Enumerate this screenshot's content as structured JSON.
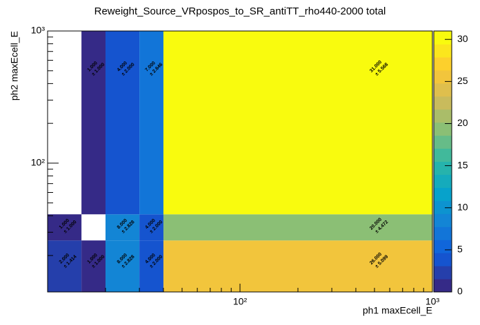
{
  "chart_data": {
    "type": "heatmap",
    "title": "Reweight_Source_VRpospos_to_SR_antiTT_rho440-2000 total",
    "x_label": "ph1 maxEcell_E",
    "y_label": "ph2 maxEcell_E",
    "log_x": true,
    "log_y": true,
    "xlim": [
      10,
      1000
    ],
    "ylim": [
      10.6,
      1000
    ],
    "xticks": [
      {
        "value": 100,
        "label": "10²"
      },
      {
        "value": 1000,
        "label": "10³"
      }
    ],
    "yticks": [
      {
        "value": 100,
        "label": "10²"
      },
      {
        "value": 1000,
        "label": "10³"
      }
    ],
    "xminorticks": [
      20,
      30,
      40,
      50,
      60,
      70,
      80,
      90,
      200,
      300,
      400,
      500,
      600,
      700,
      800,
      900
    ],
    "yminorticks": [
      20,
      30,
      40,
      50,
      60,
      70,
      80,
      90,
      200,
      300,
      400,
      500,
      600,
      700,
      800,
      900
    ],
    "xbins": [
      10,
      15,
      20,
      30,
      40,
      1000
    ],
    "ybins": [
      10.6,
      26,
      41,
      1000
    ],
    "values": [
      [
        2,
        1,
        8,
        4,
        26
      ],
      [
        1,
        null,
        8,
        4,
        20
      ],
      [
        null,
        1,
        4,
        7,
        31
      ]
    ],
    "value_labels": [
      [
        "2.000",
        "1.000",
        "8.000",
        "4.000",
        "26.000"
      ],
      [
        "1.000",
        null,
        "8.000",
        "4.000",
        "20.000"
      ],
      [
        null,
        "1.000",
        "4.000",
        "7.000",
        "31.000"
      ]
    ],
    "errors": [
      [
        1.414,
        1,
        2.828,
        2,
        5.099
      ],
      [
        1,
        null,
        2.828,
        2,
        4.472
      ],
      [
        null,
        1,
        2,
        2.646,
        5.568
      ]
    ],
    "error_labels": [
      [
        "± 1.414",
        "± 1.000",
        "± 2.828",
        "± 2.000",
        "± 5.099"
      ],
      [
        "± 1.000",
        null,
        "± 2.828",
        "± 2.000",
        "± 4.472"
      ],
      [
        null,
        "± 1.000",
        "± 2.000",
        "± 2.646",
        "± 5.568"
      ]
    ],
    "zlim": [
      0,
      31
    ],
    "zticks": [
      0,
      5,
      10,
      15,
      20,
      25,
      30
    ],
    "color_levels": 20,
    "colorscale": [
      "#352a87",
      "#0f5cdd",
      "#1481d6",
      "#06a4ca",
      "#2eb7a4",
      "#87bf77",
      "#d1bb59",
      "#fec832",
      "#f9fb0e"
    ]
  }
}
